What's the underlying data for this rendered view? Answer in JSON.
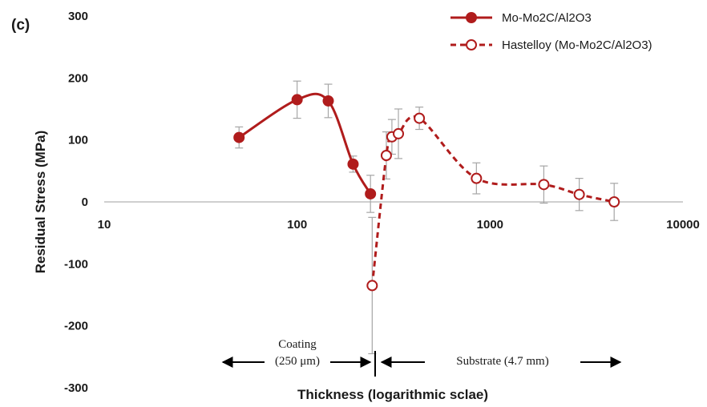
{
  "chart_data": {
    "type": "line",
    "panel_label": "(c)",
    "xlabel": "Thickness (logarithmic sclae)",
    "ylabel": "Residual Stress (MPa)",
    "xscale": "log",
    "xlim": [
      10,
      10000
    ],
    "ylim": [
      -300,
      300
    ],
    "x_ticks": [
      "10",
      "100",
      "1000",
      "10000"
    ],
    "y_ticks": [
      "300",
      "200",
      "100",
      "0",
      "-100",
      "-200",
      "-300"
    ],
    "grid": false,
    "legend_position": "top-right",
    "series": [
      {
        "name": "Mo-Mo2C/Al2O3",
        "style": "solid",
        "marker": "filled-circle",
        "color": "#b01c1c",
        "x": [
          50,
          100,
          145,
          195,
          240
        ],
        "y": [
          104,
          165,
          163,
          61,
          13
        ],
        "err": [
          17,
          30,
          27,
          13,
          30
        ]
      },
      {
        "name": "Hastelloy (Mo-Mo2C/Al2O3)",
        "style": "dashed",
        "marker": "open-circle",
        "color": "#b01c1c",
        "x": [
          245,
          290,
          310,
          335,
          430,
          850,
          1900,
          2900,
          4400
        ],
        "y": [
          -135,
          75,
          105,
          110,
          135,
          38,
          28,
          12,
          0
        ],
        "err": [
          110,
          38,
          28,
          40,
          18,
          25,
          30,
          26,
          30
        ]
      }
    ],
    "annotations": {
      "coating_line1": "Coating",
      "coating_line2": "(250 μm)",
      "substrate": "Substrate (4.7 mm)"
    }
  }
}
